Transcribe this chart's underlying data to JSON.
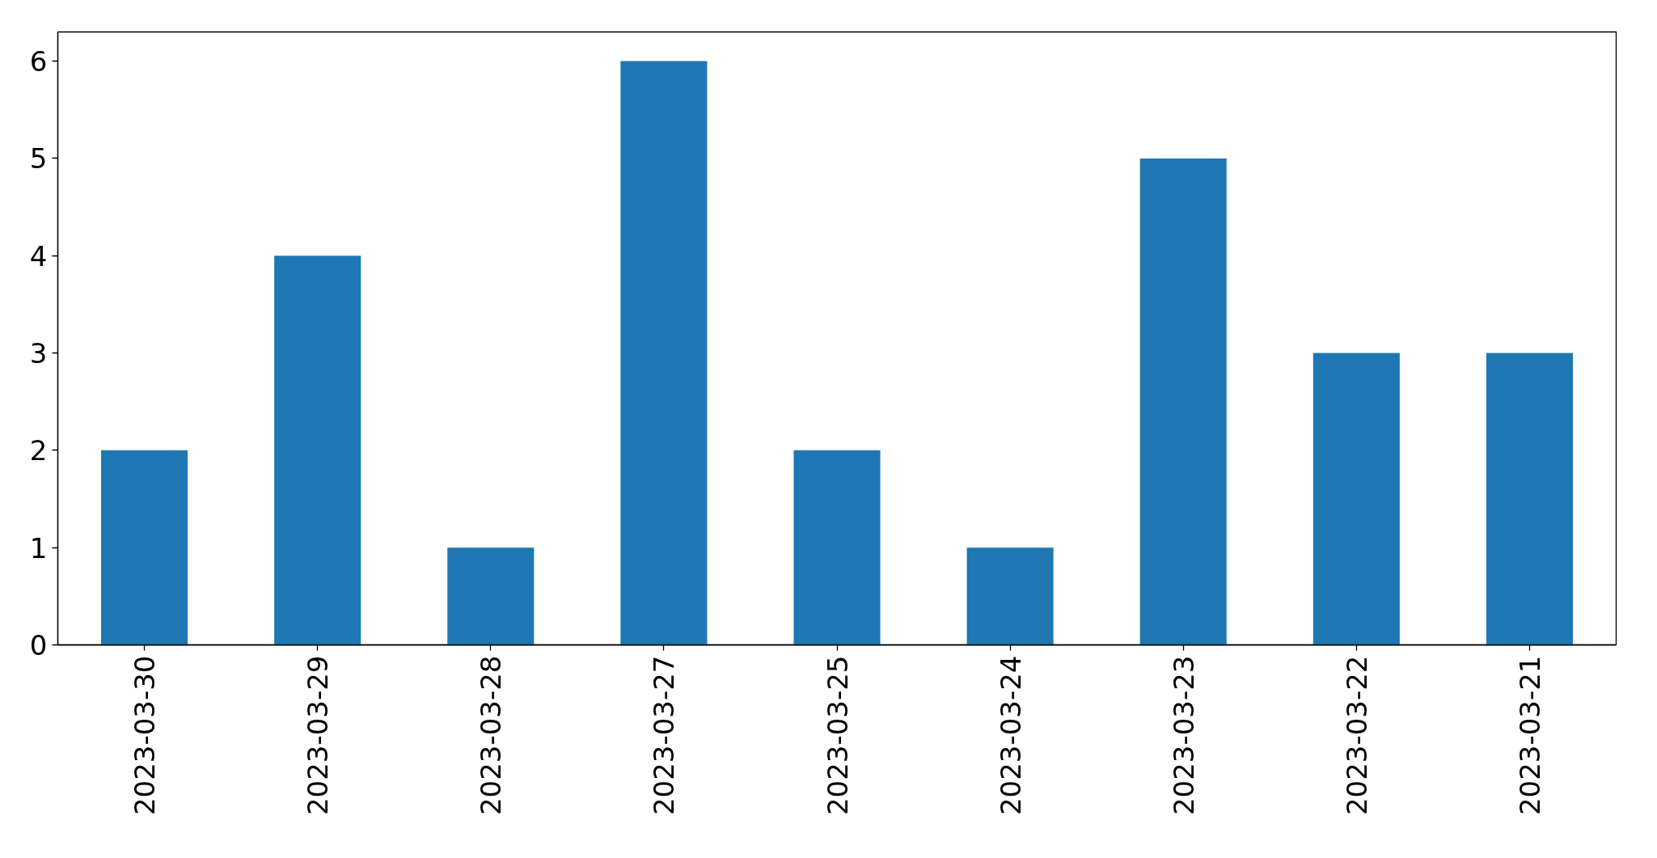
{
  "chart_data": {
    "type": "bar",
    "categories": [
      "2023-03-30",
      "2023-03-29",
      "2023-03-28",
      "2023-03-27",
      "2023-03-25",
      "2023-03-24",
      "2023-03-23",
      "2023-03-22",
      "2023-03-21"
    ],
    "values": [
      2,
      4,
      1,
      6,
      2,
      1,
      5,
      3,
      3
    ],
    "color": "#1f77b4",
    "ylim": [
      0,
      6.3
    ],
    "yticks": [
      0,
      1,
      2,
      3,
      4,
      5,
      6
    ],
    "grid": false
  }
}
